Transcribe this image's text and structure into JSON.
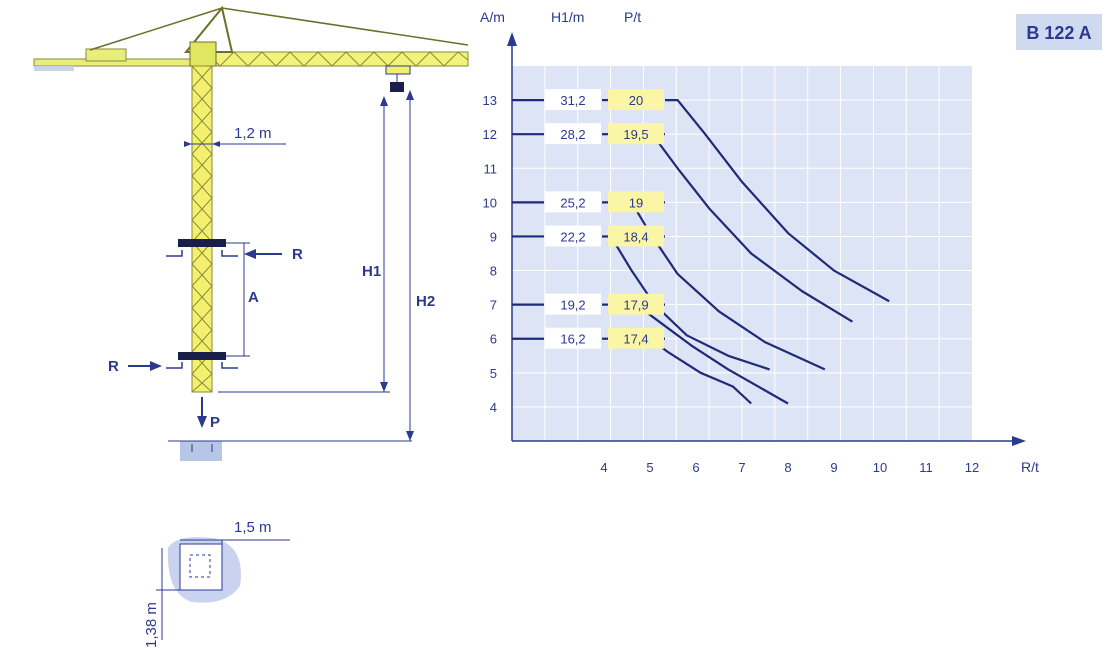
{
  "model": "B 122 A",
  "diagram": {
    "tower_width": "1,2 m",
    "base_width": "1,5 m",
    "base_depth": "1,38 m",
    "reaction": "R",
    "anchorage_spacing": "A",
    "load": "P",
    "height_under_hook": "H1",
    "total_height": "H2"
  },
  "chart_data": {
    "type": "line",
    "column_headers": {
      "a": "A/m",
      "h1": "H1/m",
      "p": "P/t"
    },
    "x_axis_label": "R/t",
    "x_ticks": [
      4,
      5,
      6,
      7,
      8,
      9,
      10,
      11,
      12
    ],
    "y_ticks": [
      4,
      5,
      6,
      7,
      8,
      9,
      10,
      11,
      12,
      13
    ],
    "xlim": [
      2,
      12
    ],
    "ylim": [
      3,
      14
    ],
    "grid": true,
    "series": [
      {
        "a": 13,
        "h1": "31,2",
        "p": "20",
        "points": [
          [
            5.6,
            13
          ],
          [
            6.2,
            12
          ],
          [
            7,
            10.6
          ],
          [
            8,
            9.1
          ],
          [
            9,
            8
          ],
          [
            10.2,
            7.1
          ]
        ]
      },
      {
        "a": 12,
        "h1": "28,2",
        "p": "19,5",
        "points": [
          [
            5.05,
            12
          ],
          [
            5.6,
            11
          ],
          [
            6.3,
            9.8
          ],
          [
            7.2,
            8.5
          ],
          [
            8.3,
            7.4
          ],
          [
            9.4,
            6.5
          ]
        ]
      },
      {
        "a": 10,
        "h1": "25,2",
        "p": "19",
        "points": [
          [
            4.6,
            10
          ],
          [
            5,
            9.1
          ],
          [
            5.6,
            7.9
          ],
          [
            6.5,
            6.8
          ],
          [
            7.5,
            5.9
          ],
          [
            8.8,
            5.1
          ]
        ]
      },
      {
        "a": 9,
        "h1": "22,2",
        "p": "18,4",
        "points": [
          [
            4.15,
            9
          ],
          [
            4.6,
            8
          ],
          [
            5.1,
            7
          ],
          [
            5.8,
            6.1
          ],
          [
            6.7,
            5.5
          ],
          [
            7.6,
            5.1
          ]
        ]
      },
      {
        "a": 7,
        "h1": "19,2",
        "p": "17,9",
        "points": [
          [
            4.7,
            7
          ],
          [
            5.2,
            6.5
          ],
          [
            5.9,
            5.8
          ],
          [
            6.7,
            5.1
          ],
          [
            8,
            4.1
          ]
        ]
      },
      {
        "a": 6,
        "h1": "16,2",
        "p": "17,4",
        "points": [
          [
            5.0,
            6
          ],
          [
            5.4,
            5.6
          ],
          [
            6.1,
            5
          ],
          [
            6.8,
            4.6
          ],
          [
            7.2,
            4.1
          ]
        ]
      }
    ]
  }
}
